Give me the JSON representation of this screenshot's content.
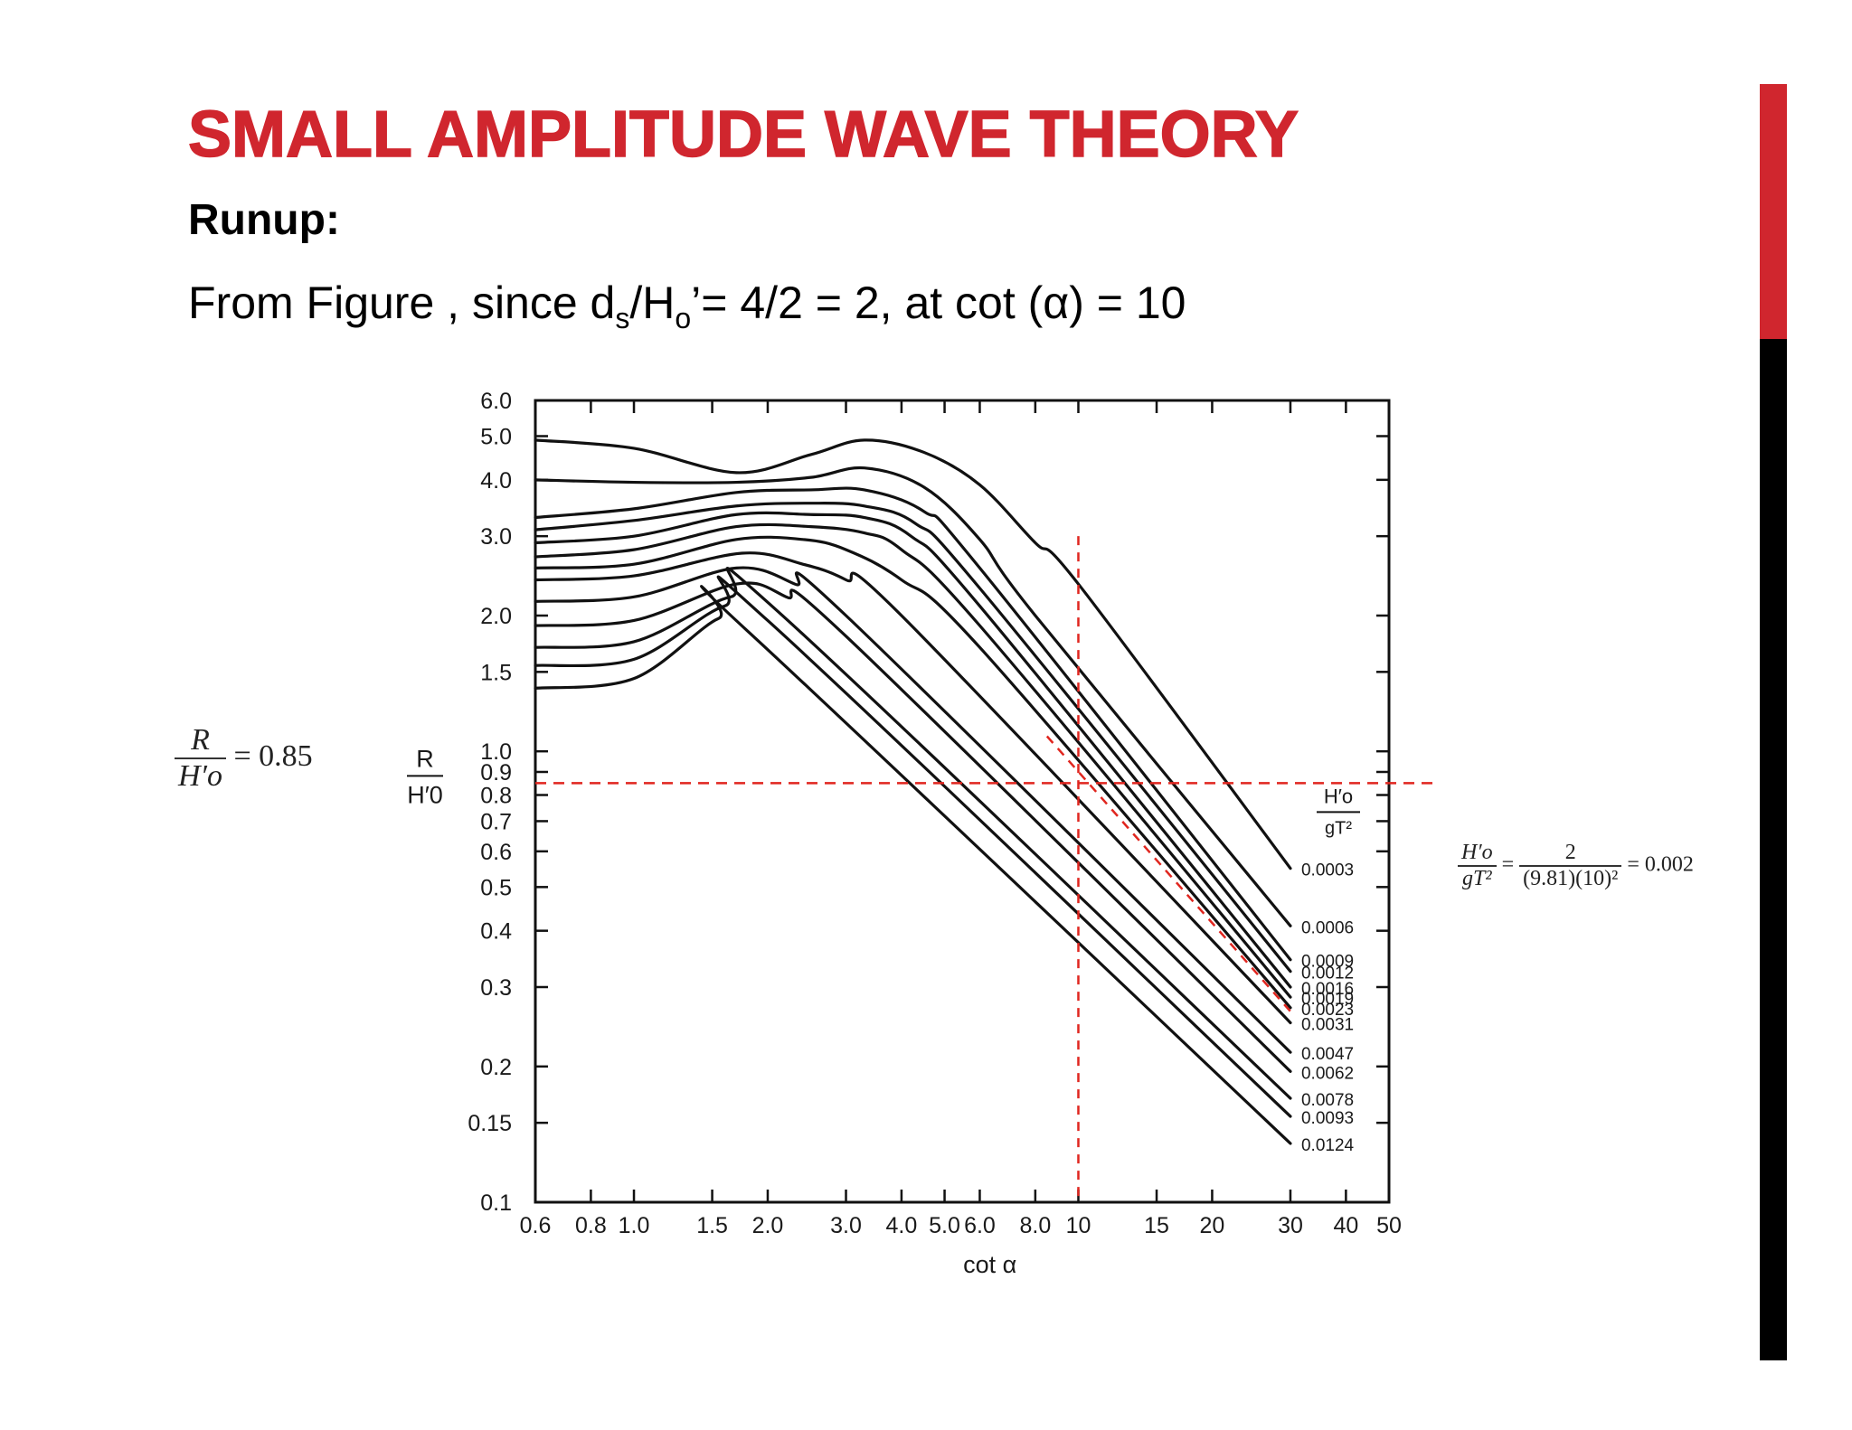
{
  "slide": {
    "title": "SMALL AMPLITUDE WAVE THEORY",
    "subtitle": "Runup:",
    "statement": {
      "prefix": "From Figure , since d",
      "sub1": "s",
      "mid1": "/H",
      "sub2": "o",
      "suffix": "’= 4/2 = 2, at cot (α) = 10"
    },
    "accent_colors": {
      "red": "#d0262e",
      "black": "#000000"
    }
  },
  "annotations": {
    "runup_ratio": {
      "numerator": "R",
      "denominator": "H′o",
      "equals": "= 0.85"
    },
    "steepness_calc": {
      "lhs_numerator": "H′o",
      "lhs_denominator": "gT²",
      "eq1": "=",
      "rhs_numerator": "2",
      "rhs_denominator": "(9.81)(10)²",
      "result": "= 0.002"
    }
  },
  "chart_data": {
    "type": "line",
    "x_scale": "log",
    "y_scale": "log",
    "xlim": [
      0.6,
      50
    ],
    "ylim": [
      0.1,
      6.0
    ],
    "xlabel": "cot α",
    "ylabel_numerator": "R",
    "ylabel_denominator": "H′0",
    "legend_title_numerator": "H′o",
    "legend_title_denominator": "gT²",
    "x_ticks": [
      {
        "v": 0.6,
        "label": "0.6"
      },
      {
        "v": 0.8,
        "label": "0.8"
      },
      {
        "v": 1.0,
        "label": "1.0"
      },
      {
        "v": 1.5,
        "label": "1.5"
      },
      {
        "v": 2.0,
        "label": "2.0"
      },
      {
        "v": 3.0,
        "label": "3.0"
      },
      {
        "v": 4.0,
        "label": "4.0"
      },
      {
        "v": 5.0,
        "label": "5.0"
      },
      {
        "v": 6.0,
        "label": "6.0"
      },
      {
        "v": 8.0,
        "label": "8.0"
      },
      {
        "v": 10,
        "label": "10"
      },
      {
        "v": 15,
        "label": "15"
      },
      {
        "v": 20,
        "label": "20"
      },
      {
        "v": 30,
        "label": "30"
      },
      {
        "v": 40,
        "label": "40"
      },
      {
        "v": 50,
        "label": "50"
      }
    ],
    "y_ticks": [
      {
        "v": 0.1,
        "label": "0.1"
      },
      {
        "v": 0.15,
        "label": "0.15"
      },
      {
        "v": 0.2,
        "label": "0.2"
      },
      {
        "v": 0.3,
        "label": "0.3"
      },
      {
        "v": 0.4,
        "label": "0.4"
      },
      {
        "v": 0.5,
        "label": "0.5"
      },
      {
        "v": 0.6,
        "label": "0.6"
      },
      {
        "v": 0.7,
        "label": "0.7"
      },
      {
        "v": 0.8,
        "label": "0.8"
      },
      {
        "v": 0.9,
        "label": "0.9"
      },
      {
        "v": 1.0,
        "label": "1.0"
      },
      {
        "v": 1.5,
        "label": "1.5"
      },
      {
        "v": 2.0,
        "label": "2.0"
      },
      {
        "v": 3.0,
        "label": "3.0"
      },
      {
        "v": 4.0,
        "label": "4.0"
      },
      {
        "v": 5.0,
        "label": "5.0"
      },
      {
        "v": 6.0,
        "label": "6.0"
      }
    ],
    "series": [
      {
        "name": "0.0003",
        "x": [
          0.6,
          1.0,
          1.7,
          2.5,
          3.3,
          4.5,
          6.0,
          8.0,
          10,
          30
        ],
        "y": [
          4.9,
          4.7,
          4.15,
          4.55,
          4.9,
          4.6,
          3.9,
          2.9,
          2.35,
          0.55
        ]
      },
      {
        "name": "0.0006",
        "x": [
          0.6,
          1.0,
          1.7,
          2.5,
          3.3,
          4.5,
          6.0,
          8.0,
          30
        ],
        "y": [
          4.0,
          3.95,
          3.95,
          4.05,
          4.25,
          3.85,
          2.95,
          2.0,
          0.41
        ]
      },
      {
        "name": "0.0009",
        "x": [
          0.6,
          1.0,
          1.7,
          2.5,
          3.3,
          4.5,
          6.0,
          30
        ],
        "y": [
          3.3,
          3.45,
          3.75,
          3.8,
          3.8,
          3.4,
          2.55,
          0.345
        ]
      },
      {
        "name": "0.0012",
        "x": [
          0.6,
          1.0,
          1.7,
          2.5,
          3.3,
          4.3,
          6.0,
          30
        ],
        "y": [
          3.1,
          3.25,
          3.5,
          3.55,
          3.5,
          3.2,
          2.3,
          0.325
        ]
      },
      {
        "name": "0.0016",
        "x": [
          0.6,
          1.0,
          1.7,
          2.5,
          3.3,
          4.2,
          6.0,
          30
        ],
        "y": [
          2.9,
          3.0,
          3.35,
          3.35,
          3.3,
          3.0,
          2.1,
          0.3
        ]
      },
      {
        "name": "0.0019",
        "x": [
          0.6,
          1.0,
          1.7,
          2.5,
          3.3,
          4.0,
          6.0,
          30
        ],
        "y": [
          2.7,
          2.8,
          3.15,
          3.15,
          3.05,
          2.8,
          1.9,
          0.285
        ]
      },
      {
        "name": "0.0023",
        "x": [
          0.6,
          1.0,
          1.7,
          2.4,
          3.0,
          4.0,
          6.0,
          30
        ],
        "y": [
          2.55,
          2.6,
          2.95,
          2.95,
          2.8,
          2.4,
          1.7,
          0.27
        ]
      },
      {
        "name": "0.0031",
        "x": [
          0.6,
          1.0,
          1.75,
          2.4,
          3.0,
          4.0,
          30
        ],
        "y": [
          2.4,
          2.45,
          2.75,
          2.6,
          2.4,
          2.0,
          0.25
        ]
      },
      {
        "name": "0.0047",
        "x": [
          0.6,
          1.0,
          1.7,
          2.3,
          3.0,
          30
        ],
        "y": [
          2.15,
          2.2,
          2.55,
          2.35,
          2.0,
          0.215
        ]
      },
      {
        "name": "0.0062",
        "x": [
          0.6,
          1.0,
          1.7,
          2.2,
          3.0,
          30
        ],
        "y": [
          1.9,
          1.95,
          2.35,
          2.2,
          1.8,
          0.195
        ]
      },
      {
        "name": "0.0078",
        "x": [
          0.6,
          1.0,
          1.65,
          2.1,
          30
        ],
        "y": [
          1.7,
          1.75,
          2.2,
          2.05,
          0.17
        ]
      },
      {
        "name": "0.0093",
        "x": [
          0.6,
          1.0,
          1.6,
          2.0,
          30
        ],
        "y": [
          1.55,
          1.6,
          2.1,
          1.95,
          0.155
        ]
      },
      {
        "name": "0.0124",
        "x": [
          0.6,
          1.0,
          1.55,
          1.8,
          30
        ],
        "y": [
          1.38,
          1.45,
          1.97,
          1.85,
          0.135
        ]
      }
    ],
    "reference_lines": [
      {
        "kind": "vertical",
        "x": 10,
        "y_from": 0.1,
        "y_to": 3.0,
        "color": "#e0261f"
      },
      {
        "kind": "horizontal",
        "y": 0.85,
        "x_from": 0.6,
        "x_to": 50,
        "color": "#e0261f"
      },
      {
        "kind": "interpolated",
        "x": [
          8.5,
          30
        ],
        "y": [
          1.08,
          0.265
        ],
        "color": "#e0261f"
      }
    ],
    "grid": false
  }
}
